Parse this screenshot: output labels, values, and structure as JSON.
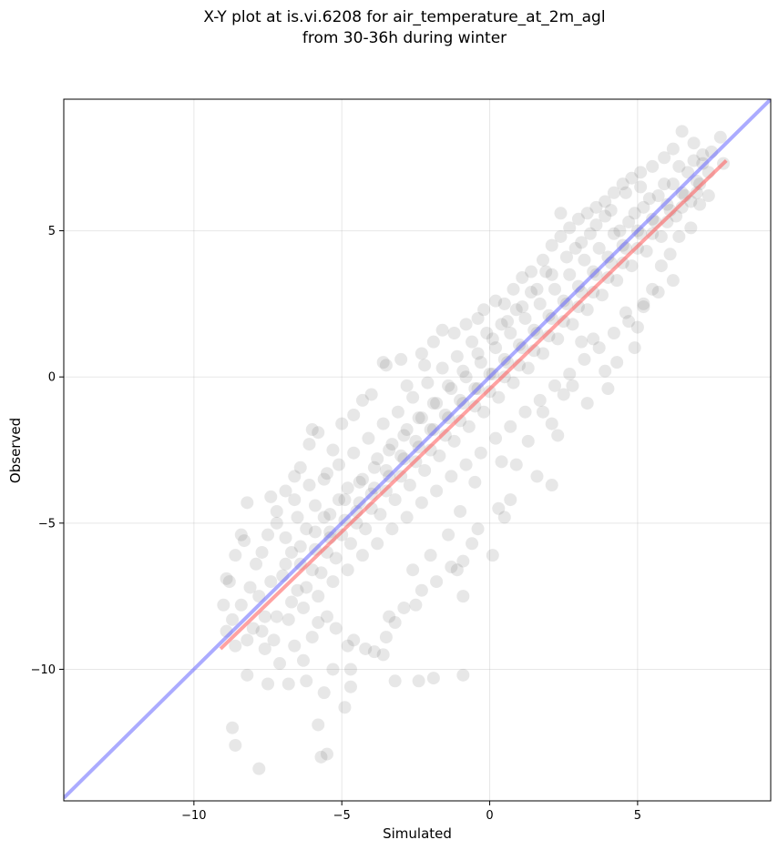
{
  "chart_data": {
    "type": "scatter",
    "title": "X-Y plot at is.vi.6208 for air_temperature_at_2m_agl",
    "subtitle": "from 30-36h during winter",
    "xlabel": "Simulated",
    "ylabel": "Observed",
    "xlim": [
      -14.4,
      9.5
    ],
    "ylim": [
      -14.5,
      9.5
    ],
    "xticks": [
      -10,
      -5,
      0,
      5
    ],
    "yticks": [
      -10,
      -5,
      0,
      5
    ],
    "xtick_labels": [
      "−10",
      "−5",
      "0",
      "5"
    ],
    "ytick_labels": [
      "−10",
      "−5",
      "0",
      "5"
    ],
    "grid": true,
    "point_color": "#444444",
    "reference_line": {
      "color": "#6666ff",
      "x": [
        -14.4,
        9.5
      ],
      "y": [
        -14.4,
        9.5
      ]
    },
    "fit_line": {
      "color": "#ff5555",
      "x": [
        -9.1,
        8.0
      ],
      "y": [
        -9.3,
        7.4
      ]
    },
    "points": [
      [
        -7.8,
        -13.4
      ],
      [
        -8.6,
        -12.6
      ],
      [
        -8.7,
        -12.0
      ],
      [
        -5.7,
        -13.0
      ],
      [
        -5.5,
        -12.9
      ],
      [
        -5.8,
        -11.9
      ],
      [
        -4.9,
        -11.3
      ],
      [
        -5.6,
        -10.8
      ],
      [
        -4.7,
        -10.6
      ],
      [
        -3.2,
        -10.4
      ],
      [
        -2.4,
        -10.4
      ],
      [
        -1.9,
        -10.3
      ],
      [
        -0.9,
        -10.2
      ],
      [
        -8.2,
        -10.2
      ],
      [
        -7.5,
        -10.5
      ],
      [
        -9.0,
        -7.8
      ],
      [
        -8.7,
        -8.3
      ],
      [
        -8.8,
        -7.0
      ],
      [
        -8.9,
        -6.9
      ],
      [
        -8.6,
        -6.1
      ],
      [
        -8.3,
        -5.6
      ],
      [
        -8.4,
        -5.4
      ],
      [
        -8.2,
        -4.3
      ],
      [
        -7.4,
        -4.1
      ],
      [
        -7.2,
        -4.6
      ],
      [
        -6.9,
        -3.9
      ],
      [
        -6.6,
        -3.4
      ],
      [
        -6.4,
        -3.1
      ],
      [
        -6.1,
        -2.3
      ],
      [
        -6.0,
        -1.8
      ],
      [
        -5.8,
        -1.9
      ],
      [
        -5.5,
        -3.3
      ],
      [
        -5.3,
        -2.5
      ],
      [
        -5.0,
        -1.6
      ],
      [
        -4.6,
        -1.3
      ],
      [
        -4.3,
        -0.8
      ],
      [
        -4.0,
        -0.6
      ],
      [
        -3.6,
        0.5
      ],
      [
        -3.5,
        0.4
      ],
      [
        -3.0,
        0.6
      ],
      [
        -2.8,
        -0.3
      ],
      [
        -2.3,
        0.8
      ],
      [
        -2.2,
        0.4
      ],
      [
        -1.9,
        1.2
      ],
      [
        -1.6,
        1.6
      ],
      [
        -1.2,
        1.5
      ],
      [
        -0.8,
        1.8
      ],
      [
        -0.4,
        2.0
      ],
      [
        -0.2,
        2.3
      ],
      [
        0.2,
        2.6
      ],
      [
        0.5,
        2.5
      ],
      [
        0.8,
        3.0
      ],
      [
        1.1,
        3.4
      ],
      [
        1.4,
        3.6
      ],
      [
        1.8,
        4.0
      ],
      [
        2.1,
        4.5
      ],
      [
        2.4,
        4.8
      ],
      [
        2.7,
        5.1
      ],
      [
        3.0,
        5.4
      ],
      [
        3.3,
        5.6
      ],
      [
        3.6,
        5.8
      ],
      [
        3.9,
        6.0
      ],
      [
        4.2,
        6.3
      ],
      [
        4.5,
        6.6
      ],
      [
        4.8,
        6.8
      ],
      [
        5.1,
        7.0
      ],
      [
        5.5,
        7.2
      ],
      [
        5.9,
        7.5
      ],
      [
        6.2,
        7.8
      ],
      [
        6.5,
        8.4
      ],
      [
        6.9,
        8.0
      ],
      [
        7.2,
        7.6
      ],
      [
        7.5,
        7.7
      ],
      [
        7.8,
        8.2
      ],
      [
        7.9,
        7.3
      ],
      [
        7.4,
        6.2
      ],
      [
        7.1,
        5.9
      ],
      [
        6.8,
        5.1
      ],
      [
        6.4,
        4.8
      ],
      [
        6.1,
        4.2
      ],
      [
        5.8,
        3.8
      ],
      [
        5.5,
        3.0
      ],
      [
        5.2,
        2.5
      ],
      [
        5.0,
        1.7
      ],
      [
        4.9,
        1.0
      ],
      [
        4.6,
        2.2
      ],
      [
        4.3,
        0.5
      ],
      [
        3.9,
        0.2
      ],
      [
        3.5,
        1.3
      ],
      [
        3.1,
        1.2
      ],
      [
        2.8,
        -0.3
      ],
      [
        2.5,
        -0.6
      ],
      [
        2.1,
        -1.6
      ],
      [
        2.1,
        -3.7
      ],
      [
        1.8,
        -1.2
      ],
      [
        1.3,
        -2.2
      ],
      [
        0.9,
        -3.0
      ],
      [
        0.7,
        -4.2
      ],
      [
        0.5,
        -4.8
      ],
      [
        0.3,
        -4.5
      ],
      [
        0.1,
        -6.1
      ],
      [
        -0.4,
        -5.2
      ],
      [
        -0.6,
        -5.7
      ],
      [
        -0.9,
        -6.3
      ],
      [
        -1.1,
        -6.6
      ],
      [
        -0.9,
        -7.5
      ],
      [
        -1.3,
        -6.5
      ],
      [
        -1.8,
        -7.0
      ],
      [
        -2.3,
        -7.3
      ],
      [
        -2.5,
        -7.8
      ],
      [
        -2.9,
        -7.9
      ],
      [
        -3.2,
        -8.4
      ],
      [
        -3.5,
        -8.9
      ],
      [
        -3.6,
        -9.5
      ],
      [
        -3.9,
        -9.4
      ],
      [
        -4.2,
        -9.3
      ],
      [
        -4.6,
        -9.0
      ],
      [
        -4.8,
        -9.2
      ],
      [
        -4.7,
        -10.0
      ],
      [
        -5.2,
        -8.6
      ],
      [
        -5.5,
        -8.2
      ],
      [
        -5.8,
        -8.4
      ],
      [
        -6.0,
        -8.9
      ],
      [
        -6.3,
        -9.7
      ],
      [
        -6.6,
        -9.2
      ],
      [
        -6.8,
        -10.5
      ],
      [
        -7.1,
        -9.8
      ],
      [
        -7.3,
        -9.0
      ],
      [
        -7.6,
        -8.2
      ],
      [
        -7.8,
        -7.5
      ],
      [
        -8.1,
        -7.2
      ],
      [
        -8.4,
        -7.8
      ],
      [
        -7.9,
        -6.4
      ],
      [
        -7.7,
        -6.0
      ],
      [
        -7.5,
        -5.4
      ],
      [
        -7.2,
        -5.0
      ],
      [
        -6.9,
        -5.5
      ],
      [
        -6.7,
        -6.0
      ],
      [
        -6.5,
        -4.8
      ],
      [
        -6.2,
        -5.2
      ],
      [
        -5.9,
        -4.4
      ],
      [
        -5.6,
        -4.8
      ],
      [
        -5.4,
        -5.5
      ],
      [
        -5.1,
        -4.2
      ],
      [
        -4.8,
        -3.8
      ],
      [
        -4.5,
        -4.6
      ],
      [
        -4.3,
        -3.5
      ],
      [
        -4.0,
        -4.0
      ],
      [
        -3.8,
        -2.8
      ],
      [
        -3.5,
        -3.2
      ],
      [
        -3.3,
        -2.3
      ],
      [
        -3.0,
        -2.7
      ],
      [
        -2.8,
        -1.8
      ],
      [
        -2.5,
        -2.2
      ],
      [
        -2.3,
        -1.4
      ],
      [
        -2.0,
        -1.8
      ],
      [
        -1.8,
        -0.9
      ],
      [
        -1.5,
        -1.3
      ],
      [
        -1.3,
        -0.4
      ],
      [
        -1.0,
        -0.8
      ],
      [
        -0.8,
        0.0
      ],
      [
        -0.5,
        -0.4
      ],
      [
        -0.3,
        0.5
      ],
      [
        0.0,
        0.1
      ],
      [
        0.2,
        1.0
      ],
      [
        0.5,
        0.6
      ],
      [
        0.7,
        1.5
      ],
      [
        1.0,
        1.1
      ],
      [
        1.2,
        2.0
      ],
      [
        1.5,
        1.6
      ],
      [
        1.7,
        2.5
      ],
      [
        2.0,
        2.1
      ],
      [
        2.2,
        3.0
      ],
      [
        2.5,
        2.6
      ],
      [
        2.7,
        3.5
      ],
      [
        3.0,
        3.1
      ],
      [
        3.2,
        4.0
      ],
      [
        3.5,
        3.6
      ],
      [
        3.7,
        4.4
      ],
      [
        4.0,
        4.1
      ],
      [
        4.2,
        4.9
      ],
      [
        4.5,
        4.5
      ],
      [
        4.7,
        5.3
      ],
      [
        5.0,
        5.0
      ],
      [
        5.2,
        5.8
      ],
      [
        5.5,
        5.4
      ],
      [
        5.7,
        6.2
      ],
      [
        6.0,
        5.9
      ],
      [
        6.2,
        6.6
      ],
      [
        6.5,
        6.3
      ],
      [
        6.7,
        7.0
      ],
      [
        7.0,
        6.7
      ],
      [
        7.2,
        7.3
      ],
      [
        6.8,
        6.0
      ],
      [
        6.3,
        5.5
      ],
      [
        5.8,
        4.8
      ],
      [
        5.3,
        4.3
      ],
      [
        4.8,
        3.8
      ],
      [
        4.3,
        3.3
      ],
      [
        3.8,
        2.8
      ],
      [
        3.3,
        2.3
      ],
      [
        2.8,
        1.8
      ],
      [
        2.3,
        1.3
      ],
      [
        1.8,
        0.8
      ],
      [
        1.3,
        0.3
      ],
      [
        0.8,
        -0.2
      ],
      [
        0.3,
        -0.7
      ],
      [
        -0.2,
        -1.2
      ],
      [
        -0.7,
        -1.7
      ],
      [
        -1.2,
        -2.2
      ],
      [
        -1.7,
        -2.7
      ],
      [
        -2.2,
        -3.2
      ],
      [
        -2.7,
        -3.7
      ],
      [
        -3.2,
        -4.2
      ],
      [
        -3.7,
        -4.7
      ],
      [
        -4.2,
        -5.2
      ],
      [
        -4.7,
        -5.7
      ],
      [
        -5.2,
        -6.2
      ],
      [
        -5.7,
        -6.7
      ],
      [
        -6.2,
        -7.2
      ],
      [
        -6.7,
        -7.7
      ],
      [
        -7.2,
        -8.2
      ],
      [
        -7.7,
        -8.7
      ],
      [
        -8.2,
        -9.0
      ],
      [
        -8.6,
        -9.2
      ],
      [
        -6.4,
        -6.4
      ],
      [
        -5.9,
        -5.9
      ],
      [
        -5.4,
        -5.3
      ],
      [
        -4.9,
        -4.9
      ],
      [
        -4.4,
        -4.3
      ],
      [
        -3.9,
        -3.8
      ],
      [
        -3.4,
        -3.4
      ],
      [
        -2.9,
        -2.8
      ],
      [
        -2.4,
        -2.4
      ],
      [
        -1.9,
        -1.8
      ],
      [
        -1.4,
        -1.4
      ],
      [
        -0.9,
        -0.9
      ],
      [
        -0.4,
        -0.4
      ],
      [
        0.1,
        0.1
      ],
      [
        0.6,
        0.5
      ],
      [
        1.1,
        1.0
      ],
      [
        1.6,
        1.5
      ],
      [
        2.1,
        2.0
      ],
      [
        2.6,
        2.5
      ],
      [
        3.1,
        2.9
      ],
      [
        3.6,
        3.5
      ],
      [
        4.1,
        3.9
      ],
      [
        4.6,
        4.4
      ],
      [
        5.1,
        4.9
      ],
      [
        5.6,
        5.3
      ],
      [
        6.1,
        5.7
      ],
      [
        6.6,
        6.2
      ],
      [
        7.1,
        6.6
      ],
      [
        -7.0,
        -6.8
      ],
      [
        -6.5,
        -7.3
      ],
      [
        -6.0,
        -6.6
      ],
      [
        -5.5,
        -6.0
      ],
      [
        -5.0,
        -5.4
      ],
      [
        -4.5,
        -5.0
      ],
      [
        -4.0,
        -4.5
      ],
      [
        -3.5,
        -3.9
      ],
      [
        -3.0,
        -3.4
      ],
      [
        -2.5,
        -2.9
      ],
      [
        -2.0,
        -2.5
      ],
      [
        -1.5,
        -2.0
      ],
      [
        -1.0,
        -1.5
      ],
      [
        -0.5,
        -1.0
      ],
      [
        0.0,
        -0.5
      ],
      [
        0.5,
        0.0
      ],
      [
        1.0,
        0.4
      ],
      [
        1.5,
        0.9
      ],
      [
        2.0,
        1.4
      ],
      [
        2.5,
        1.9
      ],
      [
        3.0,
        2.4
      ],
      [
        3.5,
        2.9
      ],
      [
        4.0,
        3.4
      ],
      [
        4.5,
        3.9
      ],
      [
        5.0,
        4.4
      ],
      [
        5.5,
        4.9
      ],
      [
        6.0,
        5.3
      ],
      [
        6.5,
        5.8
      ],
      [
        7.0,
        6.3
      ],
      [
        -7.4,
        -7.0
      ],
      [
        -6.9,
        -6.4
      ],
      [
        -6.4,
        -5.8
      ],
      [
        -5.9,
        -5.3
      ],
      [
        -5.4,
        -4.7
      ],
      [
        -4.9,
        -4.2
      ],
      [
        -4.4,
        -3.6
      ],
      [
        -3.9,
        -3.1
      ],
      [
        -3.4,
        -2.5
      ],
      [
        -2.9,
        -2.0
      ],
      [
        -2.4,
        -1.4
      ],
      [
        -1.9,
        -0.9
      ],
      [
        -1.4,
        -0.3
      ],
      [
        -0.9,
        0.2
      ],
      [
        -0.4,
        0.8
      ],
      [
        0.1,
        1.3
      ],
      [
        0.6,
        1.9
      ],
      [
        1.1,
        2.4
      ],
      [
        1.6,
        3.0
      ],
      [
        2.1,
        3.5
      ],
      [
        2.6,
        4.1
      ],
      [
        3.1,
        4.6
      ],
      [
        3.6,
        5.2
      ],
      [
        4.1,
        5.7
      ],
      [
        4.6,
        6.3
      ],
      [
        5.1,
        6.5
      ],
      [
        -6.6,
        -4.2
      ],
      [
        -6.1,
        -3.7
      ],
      [
        -5.6,
        -3.5
      ],
      [
        -5.1,
        -3.0
      ],
      [
        -4.6,
        -2.6
      ],
      [
        -4.1,
        -2.1
      ],
      [
        -3.6,
        -1.6
      ],
      [
        -3.1,
        -1.2
      ],
      [
        -2.6,
        -0.7
      ],
      [
        -2.1,
        -0.2
      ],
      [
        -1.6,
        0.3
      ],
      [
        -1.1,
        0.7
      ],
      [
        -0.6,
        1.2
      ],
      [
        -6.8,
        -8.3
      ],
      [
        -6.3,
        -7.9
      ],
      [
        -5.8,
        -7.5
      ],
      [
        -5.3,
        -7.0
      ],
      [
        -4.8,
        -6.6
      ],
      [
        -4.3,
        -6.1
      ],
      [
        -3.8,
        -5.7
      ],
      [
        -3.3,
        -5.2
      ],
      [
        -2.8,
        -4.8
      ],
      [
        -2.3,
        -4.3
      ],
      [
        -1.8,
        -3.9
      ],
      [
        -1.3,
        -3.4
      ],
      [
        -0.8,
        -3.0
      ],
      [
        -0.3,
        -2.6
      ],
      [
        0.2,
        -2.1
      ],
      [
        0.7,
        -1.7
      ],
      [
        1.2,
        -1.2
      ],
      [
        1.7,
        -0.8
      ],
      [
        2.2,
        -0.3
      ],
      [
        2.7,
        0.1
      ],
      [
        3.2,
        0.6
      ],
      [
        3.7,
        1.0
      ],
      [
        4.2,
        1.5
      ],
      [
        4.7,
        1.9
      ],
      [
        5.2,
        2.4
      ],
      [
        5.7,
        2.9
      ],
      [
        6.2,
        3.3
      ],
      [
        2.4,
        5.6
      ],
      [
        2.9,
        4.4
      ],
      [
        3.4,
        4.9
      ],
      [
        3.9,
        5.5
      ],
      [
        4.4,
        5.0
      ],
      [
        4.9,
        5.6
      ],
      [
        5.4,
        6.1
      ],
      [
        5.9,
        6.6
      ],
      [
        6.4,
        7.2
      ],
      [
        6.9,
        7.4
      ],
      [
        7.4,
        7.0
      ],
      [
        1.9,
        3.6
      ],
      [
        1.4,
        2.9
      ],
      [
        0.9,
        2.3
      ],
      [
        0.4,
        1.8
      ],
      [
        -0.1,
        1.5
      ],
      [
        -8.0,
        -8.6
      ],
      [
        -7.6,
        -9.3
      ],
      [
        -8.9,
        -8.7
      ],
      [
        -6.2,
        -10.4
      ],
      [
        -5.3,
        -10.0
      ],
      [
        -3.4,
        -8.2
      ],
      [
        -2.6,
        -6.6
      ],
      [
        -2.0,
        -6.1
      ],
      [
        -1.4,
        -5.4
      ],
      [
        -1.0,
        -4.6
      ],
      [
        -0.5,
        -3.6
      ],
      [
        0.4,
        -2.9
      ],
      [
        1.6,
        -3.4
      ],
      [
        2.3,
        -2.0
      ],
      [
        3.3,
        -0.9
      ],
      [
        4.0,
        -0.4
      ]
    ]
  }
}
